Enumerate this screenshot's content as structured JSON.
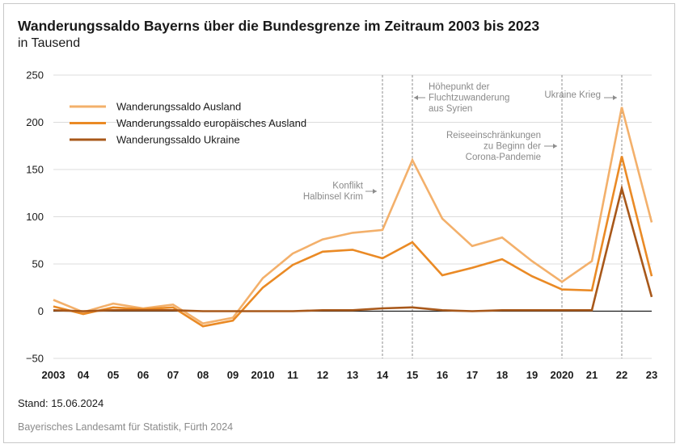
{
  "title": "Wanderungssaldo Bayerns über die Bundesgrenze im Zeitraum 2003 bis 2023",
  "subtitle": "in Tausend",
  "stand": "Stand: 15.06.2024",
  "source": "Bayerisches Landesamt für Statistik, Fürth 2024",
  "chart_data": {
    "type": "line",
    "categories": [
      "2003",
      "04",
      "05",
      "06",
      "07",
      "08",
      "09",
      "2010",
      "11",
      "12",
      "13",
      "14",
      "15",
      "16",
      "17",
      "18",
      "19",
      "2020",
      "21",
      "22",
      "23"
    ],
    "ylim": [
      -50,
      250
    ],
    "yticks": [
      -50,
      0,
      50,
      100,
      150,
      200,
      250
    ],
    "ytick_labels": [
      "−50",
      "0",
      "50",
      "100",
      "150",
      "200",
      "250"
    ],
    "grid": "horizontal",
    "legend_position": "top-left",
    "series": [
      {
        "name": "Wanderungssaldo Ausland",
        "color": "#f3b06b",
        "values": [
          12,
          -1,
          8,
          3,
          7,
          -13,
          -7,
          35,
          61,
          76,
          83,
          86,
          160,
          98,
          69,
          78,
          53,
          31,
          53,
          216,
          94
        ]
      },
      {
        "name": "Wanderungssaldo europäisches Ausland",
        "color": "#ea8a25",
        "values": [
          5,
          -3,
          4,
          2,
          4,
          -16,
          -10,
          25,
          49,
          63,
          65,
          56,
          73,
          38,
          46,
          55,
          37,
          23,
          22,
          164,
          37
        ]
      },
      {
        "name": "Wanderungssaldo Ukraine",
        "color": "#a8581a",
        "values": [
          1,
          0,
          1,
          1,
          1,
          0,
          0,
          0,
          0,
          1,
          1,
          3,
          4,
          1,
          0,
          1,
          1,
          1,
          1,
          130,
          15
        ]
      }
    ],
    "annotations": [
      {
        "category": "14",
        "lines": [
          "Konflikt",
          "Halbinsel Krim"
        ]
      },
      {
        "category": "15",
        "lines": [
          "Höhepunkt der",
          "Fluchtzuwanderung",
          "aus Syrien"
        ]
      },
      {
        "category": "2020",
        "lines": [
          "Reiseeinschränkungen",
          "zu Beginn der",
          "Corona-Pandemie"
        ]
      },
      {
        "category": "22",
        "lines": [
          "Ukraine Krieg"
        ]
      }
    ]
  }
}
